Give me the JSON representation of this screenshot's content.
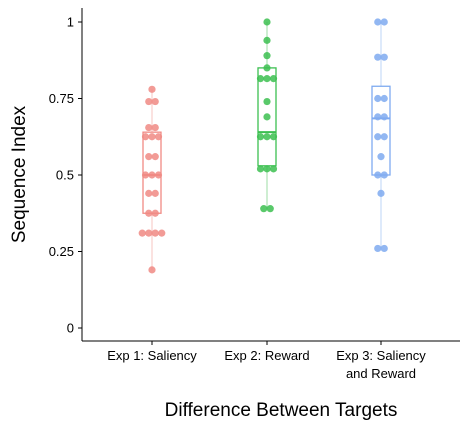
{
  "chart_data": {
    "type": "boxplot",
    "xlabel": "Difference Between Targets",
    "ylabel": "Sequence Index",
    "ylim": [
      0,
      1.05
    ],
    "yticks": [
      {
        "value": 0,
        "label": "0"
      },
      {
        "value": 0.25,
        "label": "0.25"
      },
      {
        "value": 0.5,
        "label": "0.5"
      },
      {
        "value": 0.75,
        "label": "0.75"
      },
      {
        "value": 1,
        "label": "1"
      }
    ],
    "grid": false,
    "legend": "none",
    "categories": [
      {
        "lines": [
          "Exp 1: Saliency"
        ],
        "color": "#f08a84"
      },
      {
        "lines": [
          "Exp 2: Reward"
        ],
        "color": "#3cbf50"
      },
      {
        "lines": [
          "Exp 3: Saliency",
          "and Reward"
        ],
        "color": "#7faaf0"
      }
    ],
    "series": [
      {
        "box": {
          "min": 0.19,
          "q1": 0.375,
          "median": 0.5,
          "q3": 0.64,
          "max": 0.78
        },
        "points": [
          0.19,
          0.31,
          0.31,
          0.31,
          0.31,
          0.375,
          0.375,
          0.44,
          0.44,
          0.5,
          0.5,
          0.5,
          0.56,
          0.56,
          0.625,
          0.625,
          0.625,
          0.655,
          0.655,
          0.74,
          0.74,
          0.78
        ]
      },
      {
        "box": {
          "min": 0.39,
          "q1": 0.53,
          "median": 0.64,
          "q3": 0.85,
          "max": 1.0
        },
        "points": [
          0.39,
          0.39,
          0.52,
          0.52,
          0.52,
          0.625,
          0.625,
          0.625,
          0.69,
          0.74,
          0.815,
          0.815,
          0.815,
          0.85,
          0.89,
          0.94,
          1.0
        ]
      },
      {
        "box": {
          "min": 0.26,
          "q1": 0.5,
          "median": 0.685,
          "q3": 0.79,
          "max": 1.0
        },
        "points": [
          0.26,
          0.26,
          0.44,
          0.5,
          0.5,
          0.56,
          0.625,
          0.625,
          0.69,
          0.69,
          0.75,
          0.75,
          0.885,
          0.885,
          1.0,
          1.0
        ]
      }
    ]
  }
}
